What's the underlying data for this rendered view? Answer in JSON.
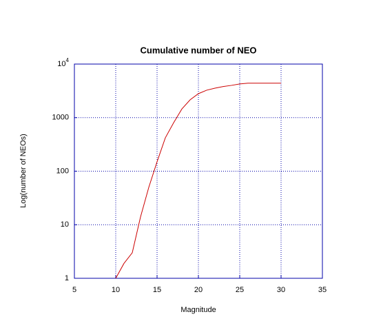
{
  "chart_data": {
    "type": "line",
    "title": "Cumulative number of NEO",
    "xlabel": "Magnitude",
    "ylabel": "Log(number of NEOs)",
    "x": [
      10,
      11,
      12,
      13,
      14,
      15,
      16,
      17,
      18,
      19,
      20,
      21,
      22,
      23,
      24,
      25,
      26,
      27,
      28,
      29,
      30
    ],
    "series": [
      {
        "color": "#cc0000",
        "values": [
          1,
          1.9,
          3,
          14,
          50,
          150,
          420,
          800,
          1450,
          2150,
          2800,
          3250,
          3550,
          3800,
          4000,
          4250,
          4400,
          4400,
          4400,
          4400,
          4400
        ]
      }
    ],
    "xlim": [
      5,
      35
    ],
    "xticks": [
      5,
      10,
      15,
      20,
      25,
      30,
      35
    ],
    "ylim": [
      1,
      10000
    ],
    "yticks": [
      1,
      10,
      100,
      1000,
      {
        "value": 10000,
        "label": "10",
        "exponent": "4"
      }
    ],
    "yscale": "log",
    "grid": true,
    "axis_color": "#0000aa"
  }
}
